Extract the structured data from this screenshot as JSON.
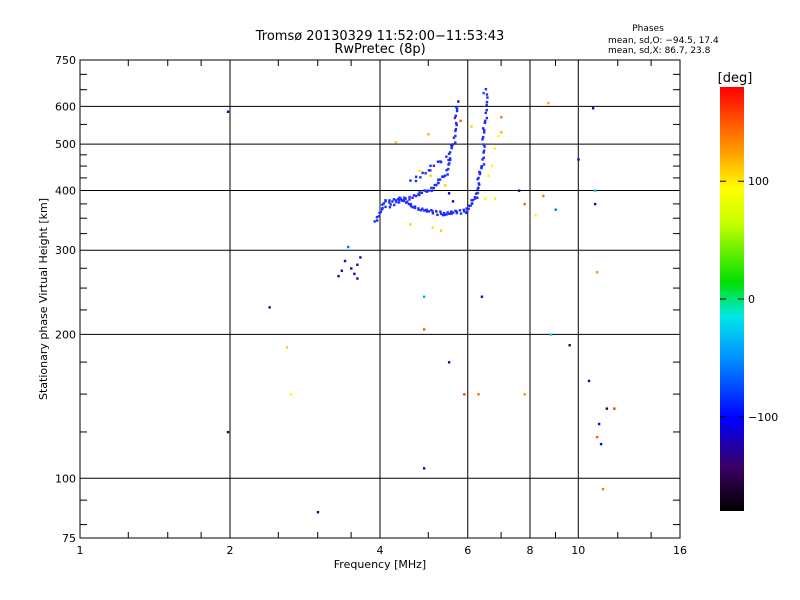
{
  "chart_data": {
    "type": "scatter",
    "title": "Tromsø 20130329 11:52:00−11:53:43",
    "subtitle": "RwPretec (8p)",
    "xlabel": "Frequency [MHz]",
    "ylabel": "Stationary phase Virtual Height [km]",
    "x_scale": "log2",
    "y_scale": "log",
    "xlim": [
      1,
      16
    ],
    "ylim": [
      75,
      750
    ],
    "x_ticks": [
      1,
      2,
      4,
      6,
      8,
      10,
      16
    ],
    "y_ticks": [
      75,
      100,
      200,
      300,
      400,
      500,
      600,
      750
    ],
    "phase_info": {
      "title": "Phases",
      "line1": "mean, sd,O: −94.5, 17.4",
      "line2": "mean, sd,X:  86.7, 23.8"
    },
    "colorbar": {
      "label": "[deg]",
      "range": [
        -180,
        180
      ],
      "ticks": [
        100,
        0,
        -100
      ],
      "tick_labels": [
        "100",
        "0",
        "−100"
      ]
    },
    "trace_color": "#1a2cff",
    "points": [
      [
        1.98,
        585,
        -120
      ],
      [
        1.98,
        125,
        -140
      ],
      [
        2.4,
        228,
        -140
      ],
      [
        2.6,
        188,
        110
      ],
      [
        2.65,
        150,
        90
      ],
      [
        3.0,
        85,
        -130
      ],
      [
        3.3,
        265,
        -130
      ],
      [
        3.35,
        272,
        -130
      ],
      [
        3.4,
        285,
        -120
      ],
      [
        3.45,
        305,
        -60
      ],
      [
        3.5,
        275,
        -130
      ],
      [
        3.55,
        268,
        -120
      ],
      [
        3.6,
        280,
        -130
      ],
      [
        3.65,
        290,
        -110
      ],
      [
        3.6,
        262,
        -130
      ],
      [
        4.3,
        505,
        110
      ],
      [
        4.9,
        240,
        -40
      ],
      [
        4.9,
        205,
        150
      ],
      [
        4.9,
        105,
        -110
      ],
      [
        5.0,
        525,
        120
      ],
      [
        5.5,
        175,
        -120
      ],
      [
        5.8,
        560,
        150
      ],
      [
        5.9,
        150,
        160
      ],
      [
        6.1,
        545,
        110
      ],
      [
        6.3,
        150,
        140
      ],
      [
        6.4,
        240,
        -130
      ],
      [
        6.45,
        640,
        -70
      ],
      [
        6.6,
        430,
        80
      ],
      [
        6.7,
        450,
        90
      ],
      [
        6.8,
        490,
        80
      ],
      [
        6.9,
        520,
        90
      ],
      [
        7.0,
        570,
        140
      ],
      [
        7.0,
        530,
        120
      ],
      [
        6.3,
        395,
        100
      ],
      [
        6.5,
        385,
        90
      ],
      [
        6.8,
        385,
        100
      ],
      [
        7.6,
        400,
        -140
      ],
      [
        7.8,
        150,
        130
      ],
      [
        7.8,
        375,
        150
      ],
      [
        8.2,
        355,
        90
      ],
      [
        8.5,
        390,
        140
      ],
      [
        8.7,
        610,
        120
      ],
      [
        8.8,
        200,
        -20
      ],
      [
        9.0,
        365,
        -60
      ],
      [
        9.6,
        190,
        -150
      ],
      [
        10.0,
        465,
        -120
      ],
      [
        10.5,
        160,
        -110
      ],
      [
        10.7,
        595,
        -110
      ],
      [
        10.8,
        375,
        -110
      ],
      [
        10.8,
        400,
        -20
      ],
      [
        10.9,
        270,
        130
      ],
      [
        10.9,
        122,
        150
      ],
      [
        11.0,
        130,
        -110
      ],
      [
        11.1,
        118,
        -100
      ],
      [
        11.4,
        140,
        -150
      ],
      [
        11.8,
        140,
        160
      ],
      [
        11.2,
        95,
        140
      ],
      [
        5.05,
        430,
        110
      ],
      [
        5.2,
        360,
        120
      ],
      [
        5.4,
        410,
        110
      ],
      [
        5.1,
        335,
        100
      ],
      [
        5.3,
        330,
        110
      ],
      [
        5.5,
        395,
        -110
      ],
      [
        5.6,
        380,
        -110
      ],
      [
        4.8,
        440,
        100
      ],
      [
        4.6,
        340,
        110
      ]
    ]
  }
}
